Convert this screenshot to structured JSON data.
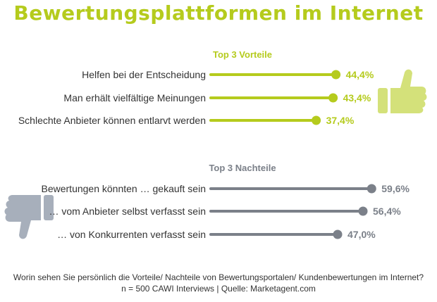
{
  "title": "Bewertungsplattformen im Internet",
  "colors": {
    "positive": "#b5cb1d",
    "negative": "#7b8089",
    "thumb_up": "#d4e17a",
    "thumb_down": "#a7afbb"
  },
  "chart_data": [
    {
      "type": "bar",
      "title": "Top 3 Vorteile",
      "categories": [
        "Helfen bei der Entscheidung",
        "Man erhält vielfältige Meinungen",
        "Schlechte Anbieter können entlarvt werden"
      ],
      "values": [
        44.4,
        43.4,
        37.4
      ],
      "value_labels": [
        "44,4%",
        "43,4%",
        "37,4%"
      ],
      "unit": "%"
    },
    {
      "type": "bar",
      "title": "Top 3 Nachteile",
      "categories": [
        "Bewertungen könnten … gekauft sein",
        "… vom Anbieter selbst verfasst sein",
        "… von Konkurrenten verfasst sein"
      ],
      "values": [
        59.6,
        56.4,
        47.0
      ],
      "value_labels": [
        "59,6%",
        "56,4%",
        "47,0%"
      ],
      "unit": "%"
    }
  ],
  "footer": {
    "question": "Worin sehen Sie persönlich die Vorteile/ Nachteile von Bewertungsportalen/ Kundenbewertungen im Internet?",
    "source": "n = 500 CAWI Interviews | Quelle: Marketagent.com"
  },
  "icons": {
    "top": "thumbs-up-icon",
    "bottom": "thumbs-down-icon"
  }
}
